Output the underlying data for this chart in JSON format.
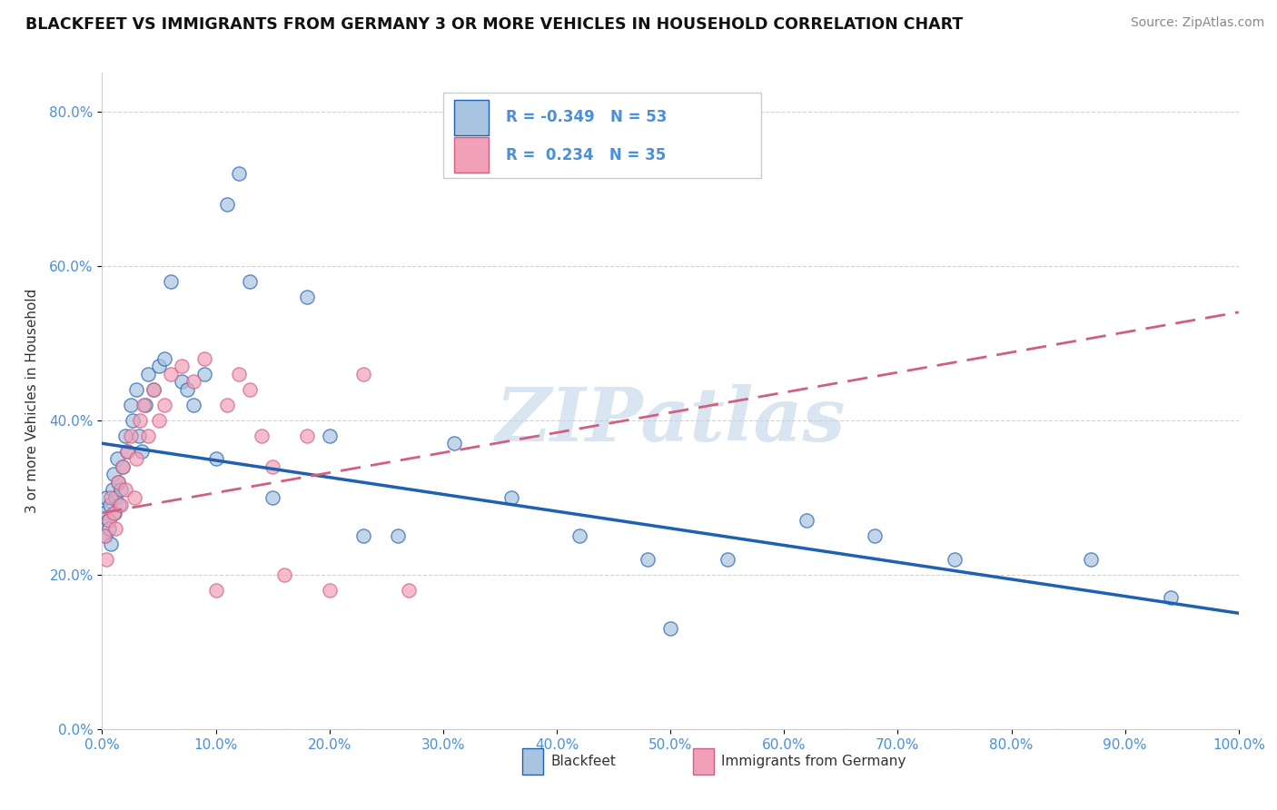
{
  "title": "BLACKFEET VS IMMIGRANTS FROM GERMANY 3 OR MORE VEHICLES IN HOUSEHOLD CORRELATION CHART",
  "source": "Source: ZipAtlas.com",
  "ylabel": "3 or more Vehicles in Household",
  "xlabel": "",
  "xlim": [
    0.0,
    1.0
  ],
  "ylim": [
    0.0,
    0.85
  ],
  "xticks": [
    0.0,
    0.1,
    0.2,
    0.3,
    0.4,
    0.5,
    0.6,
    0.7,
    0.8,
    0.9,
    1.0
  ],
  "yticks": [
    0.0,
    0.2,
    0.4,
    0.6,
    0.8
  ],
  "series1_color": "#a8c4e0",
  "series2_color": "#f0a0b8",
  "line1_color": "#2060b0",
  "line2_color": "#d06080",
  "R1": -0.349,
  "N1": 53,
  "R2": 0.234,
  "N2": 35,
  "label1": "Blackfeet",
  "label2": "Immigrants from Germany",
  "watermark": "ZIPatlas",
  "watermark_color": "#c0d4e8",
  "title_color": "#111111",
  "axis_color": "#4a90d9",
  "series1_x": [
    0.002,
    0.003,
    0.004,
    0.005,
    0.006,
    0.007,
    0.008,
    0.009,
    0.01,
    0.011,
    0.012,
    0.013,
    0.014,
    0.015,
    0.016,
    0.018,
    0.02,
    0.022,
    0.025,
    0.027,
    0.03,
    0.032,
    0.035,
    0.038,
    0.04,
    0.045,
    0.05,
    0.055,
    0.06,
    0.07,
    0.075,
    0.08,
    0.09,
    0.1,
    0.11,
    0.12,
    0.13,
    0.15,
    0.18,
    0.2,
    0.23,
    0.26,
    0.31,
    0.36,
    0.42,
    0.48,
    0.5,
    0.55,
    0.62,
    0.68,
    0.75,
    0.87,
    0.94
  ],
  "series1_y": [
    0.28,
    0.25,
    0.3,
    0.27,
    0.26,
    0.29,
    0.24,
    0.31,
    0.33,
    0.28,
    0.3,
    0.35,
    0.32,
    0.29,
    0.31,
    0.34,
    0.38,
    0.36,
    0.42,
    0.4,
    0.44,
    0.38,
    0.36,
    0.42,
    0.46,
    0.44,
    0.47,
    0.48,
    0.58,
    0.45,
    0.44,
    0.42,
    0.46,
    0.35,
    0.68,
    0.72,
    0.58,
    0.3,
    0.56,
    0.38,
    0.25,
    0.25,
    0.37,
    0.3,
    0.25,
    0.22,
    0.13,
    0.22,
    0.27,
    0.25,
    0.22,
    0.22,
    0.17
  ],
  "series2_x": [
    0.002,
    0.004,
    0.006,
    0.008,
    0.01,
    0.012,
    0.014,
    0.016,
    0.018,
    0.02,
    0.022,
    0.025,
    0.028,
    0.03,
    0.033,
    0.036,
    0.04,
    0.045,
    0.05,
    0.055,
    0.06,
    0.07,
    0.08,
    0.09,
    0.1,
    0.11,
    0.12,
    0.13,
    0.14,
    0.15,
    0.16,
    0.18,
    0.2,
    0.23,
    0.27
  ],
  "series2_y": [
    0.25,
    0.22,
    0.27,
    0.3,
    0.28,
    0.26,
    0.32,
    0.29,
    0.34,
    0.31,
    0.36,
    0.38,
    0.3,
    0.35,
    0.4,
    0.42,
    0.38,
    0.44,
    0.4,
    0.42,
    0.46,
    0.47,
    0.45,
    0.48,
    0.18,
    0.42,
    0.46,
    0.44,
    0.38,
    0.34,
    0.2,
    0.38,
    0.18,
    0.46,
    0.18
  ],
  "line1_x0": 0.0,
  "line1_y0": 0.37,
  "line1_x1": 1.0,
  "line1_y1": 0.15,
  "line2_x0": 0.0,
  "line2_y0": 0.28,
  "line2_x1": 1.0,
  "line2_y1": 0.54
}
